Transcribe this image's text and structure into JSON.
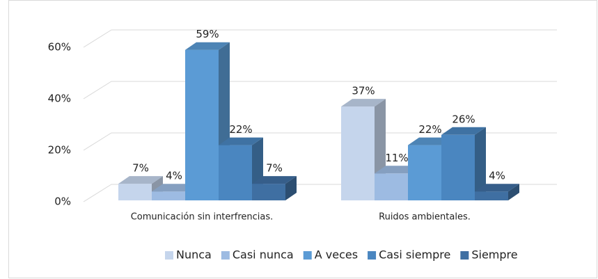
{
  "chart_data": {
    "type": "bar3d",
    "categories": [
      "Comunicación sin interfrencias.",
      "Ruidos ambientales."
    ],
    "series": [
      {
        "name": "Nunca",
        "color": "#c5d5ec",
        "values": [
          7,
          37
        ],
        "value_labels": [
          "7%",
          "37%"
        ]
      },
      {
        "name": "Casi nunca",
        "color": "#9dbbe2",
        "values": [
          4,
          11
        ],
        "value_labels": [
          "4%",
          "11%"
        ]
      },
      {
        "name": "A veces",
        "color": "#5b9bd5",
        "values": [
          59,
          22
        ],
        "value_labels": [
          "59%",
          "22%"
        ]
      },
      {
        "name": "Casi siempre",
        "color": "#4a86c0",
        "values": [
          22,
          26
        ],
        "value_labels": [
          "22%",
          "26%"
        ]
      },
      {
        "name": "Siempre",
        "color": "#3f6fa2",
        "values": [
          7,
          4
        ],
        "value_labels": [
          "7%",
          "4%"
        ]
      }
    ],
    "ylim": [
      0,
      60
    ],
    "yticks": [
      {
        "value": 0,
        "label": "0%"
      },
      {
        "value": 20,
        "label": "20%"
      },
      {
        "value": 40,
        "label": "40%"
      },
      {
        "value": 60,
        "label": "60%"
      }
    ],
    "grid": true,
    "legend": "bottom"
  }
}
